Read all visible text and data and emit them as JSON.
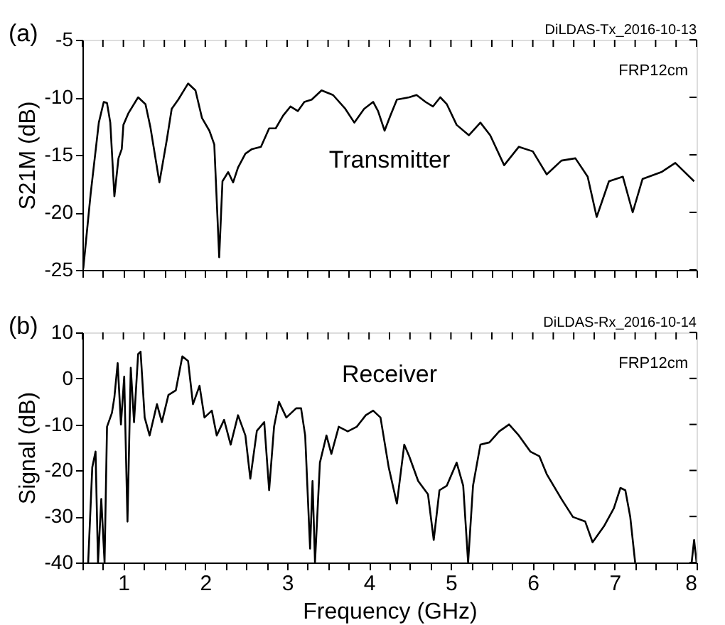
{
  "chart_data": [
    {
      "type": "line",
      "ylabel": "S21M (dB)",
      "annotations": [
        "(a)",
        "DiLDAS-Tx_2016-10-13",
        "FRP12cm",
        "Transmitter"
      ],
      "x": [
        0.51,
        0.6,
        0.7,
        0.76,
        0.8,
        0.84,
        0.89,
        0.94,
        0.98,
        1.0,
        1.06,
        1.18,
        1.27,
        1.33,
        1.44,
        1.53,
        1.59,
        1.67,
        1.79,
        1.88,
        1.96,
        2.05,
        2.11,
        2.17,
        2.21,
        2.28,
        2.34,
        2.4,
        2.49,
        2.57,
        2.68,
        2.78,
        2.86,
        2.95,
        3.04,
        3.13,
        3.21,
        3.3,
        3.42,
        3.56,
        3.71,
        3.82,
        3.94,
        4.05,
        4.11,
        4.19,
        4.26,
        4.34,
        4.49,
        4.58,
        4.69,
        4.78,
        4.87,
        4.95,
        5.07,
        5.22,
        5.36,
        5.48,
        5.65,
        5.83,
        6.0,
        6.17,
        6.35,
        6.52,
        6.67,
        6.78,
        6.93,
        7.1,
        7.22,
        7.34,
        7.57,
        7.74,
        7.97
      ],
      "series": [
        {
          "color": "#000000",
          "values": [
            -24.9,
            -18.4,
            -12.2,
            -10.4,
            -10.5,
            -12.2,
            -18.6,
            -15.3,
            -14.5,
            -12.4,
            -11.4,
            -10.0,
            -10.6,
            -12.6,
            -17.4,
            -13.7,
            -11.0,
            -10.2,
            -8.8,
            -9.4,
            -11.8,
            -12.9,
            -14.1,
            -23.9,
            -17.3,
            -16.5,
            -17.4,
            -16.1,
            -14.9,
            -14.5,
            -14.3,
            -12.7,
            -12.7,
            -11.6,
            -10.8,
            -11.2,
            -10.4,
            -10.2,
            -9.4,
            -9.8,
            -11.0,
            -12.2,
            -11.0,
            -10.4,
            -11.2,
            -12.9,
            -11.6,
            -10.2,
            -10.0,
            -9.8,
            -10.4,
            -10.8,
            -10.0,
            -10.6,
            -12.4,
            -13.3,
            -12.2,
            -13.3,
            -15.9,
            -14.3,
            -14.7,
            -16.7,
            -15.5,
            -15.3,
            -16.9,
            -20.4,
            -17.3,
            -16.9,
            -20.0,
            -17.1,
            -16.5,
            -15.7,
            -17.3
          ]
        }
      ],
      "xlim": [
        0.5,
        8
      ],
      "xticks": [
        {
          "value": 0.5,
          "label": null
        },
        {
          "value": 0.75,
          "label": null
        },
        1,
        {
          "value": 1.25,
          "label": null
        },
        {
          "value": 1.5,
          "label": null
        },
        {
          "value": 1.75,
          "label": null
        },
        2,
        {
          "value": 2.25,
          "label": null
        },
        {
          "value": 2.5,
          "label": null
        },
        {
          "value": 2.75,
          "label": null
        },
        3,
        {
          "value": 3.25,
          "label": null
        },
        {
          "value": 3.5,
          "label": null
        },
        {
          "value": 3.75,
          "label": null
        },
        4,
        {
          "value": 4.25,
          "label": null
        },
        {
          "value": 4.5,
          "label": null
        },
        {
          "value": 4.75,
          "label": null
        },
        5,
        {
          "value": 5.25,
          "label": null
        },
        {
          "value": 5.5,
          "label": null
        },
        {
          "value": 5.75,
          "label": null
        },
        6,
        {
          "value": 6.25,
          "label": null
        },
        {
          "value": 6.5,
          "label": null
        },
        {
          "value": 6.75,
          "label": null
        },
        7,
        {
          "value": 7.25,
          "label": null
        },
        {
          "value": 7.5,
          "label": null
        },
        {
          "value": 7.75,
          "label": null
        },
        8
      ],
      "ylim": [
        -25,
        -5
      ],
      "yticks": [
        -25,
        -20,
        -15,
        -10,
        -5
      ],
      "tick_labels": "y",
      "grid": false,
      "marker": "none",
      "line_style": "solid"
    },
    {
      "type": "line",
      "xlabel": "Frequency (GHz)",
      "ylabel": "Signal (dB)",
      "annotations": [
        "(b)",
        "DiLDAS-Rx_2016-10-14",
        "FRP12cm",
        "Receiver"
      ],
      "x": [
        0.57,
        0.62,
        0.66,
        0.69,
        0.73,
        0.77,
        0.8,
        0.86,
        0.89,
        0.93,
        0.97,
        1.01,
        1.05,
        1.09,
        1.13,
        1.18,
        1.21,
        1.26,
        1.32,
        1.41,
        1.47,
        1.55,
        1.64,
        1.72,
        1.79,
        1.85,
        1.93,
        1.99,
        2.08,
        2.14,
        2.23,
        2.31,
        2.4,
        2.49,
        2.55,
        2.63,
        2.72,
        2.78,
        2.84,
        2.9,
        2.99,
        3.11,
        3.17,
        3.22,
        3.28,
        3.31,
        3.34,
        3.4,
        3.48,
        3.54,
        3.63,
        3.74,
        3.85,
        3.96,
        4.05,
        4.14,
        4.24,
        4.34,
        4.43,
        4.49,
        4.6,
        4.72,
        4.79,
        4.86,
        4.95,
        5.07,
        5.15,
        5.21,
        5.27,
        5.36,
        5.47,
        5.59,
        5.71,
        5.83,
        5.97,
        6.08,
        6.17,
        6.35,
        6.49,
        6.64,
        6.73,
        6.87,
        6.99,
        7.07,
        7.13,
        7.19,
        7.25,
        7.6,
        7.94,
        7.97,
        8.0
      ],
      "series": [
        {
          "color": "#000000",
          "values": [
            -40,
            -19.3,
            -15.9,
            -40,
            -26.2,
            -40,
            -10.5,
            -7.5,
            -4.1,
            3.3,
            -10,
            0.4,
            -31.1,
            2.3,
            -9.5,
            5.3,
            5.8,
            -8.5,
            -12.4,
            -5.6,
            -9.5,
            -3.6,
            -2.6,
            4.8,
            3.8,
            -5.6,
            -1.6,
            -8.5,
            -7.0,
            -12.4,
            -9.0,
            -14.4,
            -8.0,
            -12.4,
            -21.8,
            -11.4,
            -9.5,
            -24.3,
            -10.5,
            -5.1,
            -8.5,
            -6.5,
            -6.5,
            -12.4,
            -37.0,
            -22.3,
            -40,
            -18.3,
            -12.4,
            -16.4,
            -10.5,
            -11.5,
            -10.5,
            -8.0,
            -7.0,
            -8.5,
            -19.3,
            -27.2,
            -14.4,
            -16.9,
            -22.3,
            -25.2,
            -35.1,
            -24.3,
            -23.3,
            -18.3,
            -23.3,
            -40,
            -23.3,
            -14.4,
            -13.9,
            -11.5,
            -10,
            -12.4,
            -15.9,
            -16.9,
            -20.8,
            -26.2,
            -30.1,
            -31.1,
            -35.6,
            -32.1,
            -28.2,
            -23.8,
            -24.3,
            -30.1,
            -40,
            null,
            -40,
            -35.1,
            -40
          ]
        }
      ],
      "xlim": [
        0.5,
        8
      ],
      "xticks": [
        {
          "value": 0.5,
          "label": null
        },
        {
          "value": 0.75,
          "label": null
        },
        1,
        {
          "value": 1.25,
          "label": null
        },
        {
          "value": 1.5,
          "label": null
        },
        {
          "value": 1.75,
          "label": null
        },
        2,
        {
          "value": 2.25,
          "label": null
        },
        {
          "value": 2.5,
          "label": null
        },
        {
          "value": 2.75,
          "label": null
        },
        3,
        {
          "value": 3.25,
          "label": null
        },
        {
          "value": 3.5,
          "label": null
        },
        {
          "value": 3.75,
          "label": null
        },
        4,
        {
          "value": 4.25,
          "label": null
        },
        {
          "value": 4.5,
          "label": null
        },
        {
          "value": 4.75,
          "label": null
        },
        5,
        {
          "value": 5.25,
          "label": null
        },
        {
          "value": 5.5,
          "label": null
        },
        {
          "value": 5.75,
          "label": null
        },
        6,
        {
          "value": 6.25,
          "label": null
        },
        {
          "value": 6.5,
          "label": null
        },
        {
          "value": 6.75,
          "label": null
        },
        7,
        {
          "value": 7.25,
          "label": null
        },
        {
          "value": 7.5,
          "label": null
        },
        {
          "value": 7.75,
          "label": null
        },
        8
      ],
      "ylim": [
        -40,
        10
      ],
      "yticks": [
        -40,
        -30,
        -20,
        -10,
        0,
        10
      ],
      "grid": false,
      "marker": "none",
      "line_style": "solid"
    }
  ]
}
